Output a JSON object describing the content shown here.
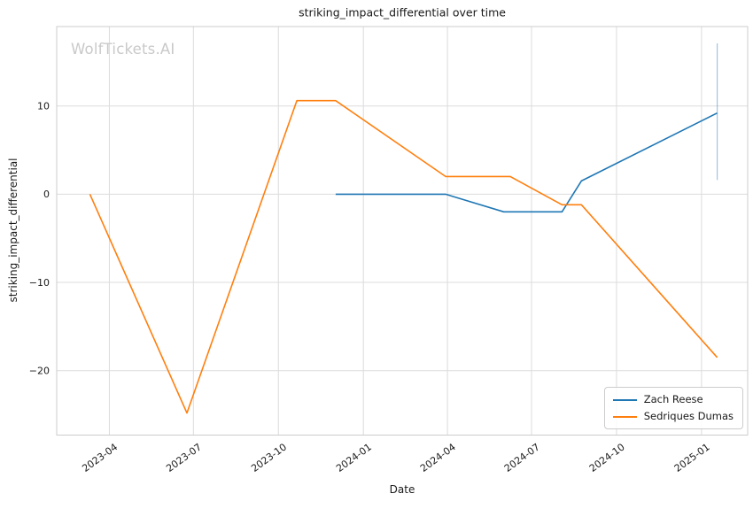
{
  "chart_data": {
    "type": "line",
    "title": "striking_impact_differential over time",
    "xlabel": "Date",
    "ylabel": "striking_impact_differential",
    "watermark": "WolfTickets.AI",
    "grid": true,
    "legend_position": "lower right",
    "xlim": [
      "2023-02-03",
      "2025-02-20"
    ],
    "ylim": [
      -27.3,
      19.0
    ],
    "x_ticks": [
      {
        "date": "2023-04-01",
        "label": "2023-04"
      },
      {
        "date": "2023-07-01",
        "label": "2023-07"
      },
      {
        "date": "2023-10-01",
        "label": "2023-10"
      },
      {
        "date": "2024-01-01",
        "label": "2024-01"
      },
      {
        "date": "2024-04-01",
        "label": "2024-04"
      },
      {
        "date": "2024-07-01",
        "label": "2024-07"
      },
      {
        "date": "2024-10-01",
        "label": "2024-10"
      },
      {
        "date": "2025-01-01",
        "label": "2025-01"
      }
    ],
    "y_ticks": [
      {
        "value": 10,
        "label": "10"
      },
      {
        "value": 0,
        "label": "0"
      },
      {
        "value": -10,
        "label": "−10"
      },
      {
        "value": -20,
        "label": "−20"
      }
    ],
    "series": [
      {
        "name": "Zach Reese",
        "color": "#1f77b4",
        "points": [
          {
            "date": "2023-12-02",
            "value": 0.0
          },
          {
            "date": "2024-03-30",
            "value": 0.0
          },
          {
            "date": "2024-06-01",
            "value": -2.0
          },
          {
            "date": "2024-08-03",
            "value": -2.0
          },
          {
            "date": "2024-08-24",
            "value": 1.5
          },
          {
            "date": "2025-01-18",
            "value": 9.2
          }
        ],
        "error_bar": {
          "date": "2025-01-18",
          "low": 1.6,
          "high": 17.1
        }
      },
      {
        "name": "Sedriques Dumas",
        "color": "#ff7f0e",
        "points": [
          {
            "date": "2023-03-11",
            "value": 0.0
          },
          {
            "date": "2023-06-24",
            "value": -24.8
          },
          {
            "date": "2023-10-21",
            "value": 10.6
          },
          {
            "date": "2023-12-02",
            "value": 10.6
          },
          {
            "date": "2024-03-30",
            "value": 2.0
          },
          {
            "date": "2024-06-08",
            "value": 2.0
          },
          {
            "date": "2024-08-03",
            "value": -1.2
          },
          {
            "date": "2024-08-24",
            "value": -1.2
          },
          {
            "date": "2025-01-18",
            "value": -18.5
          }
        ]
      }
    ],
    "colors": {
      "grid": "#dcdcdc",
      "spine": "#cccccc",
      "text": "#1a1a1a",
      "watermark": "#c9c9c9",
      "background": "#ffffff"
    }
  }
}
